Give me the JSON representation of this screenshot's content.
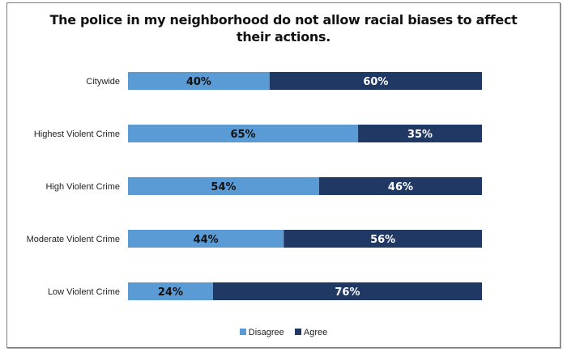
{
  "chart_data": {
    "type": "bar",
    "orientation": "horizontal",
    "stacked": true,
    "percent_stacked": true,
    "title_lines": [
      "The police in my neighborhood do not allow racial biases to affect",
      "their actions."
    ],
    "title": "The police in my neighborhood do not allow racial biases to affect their actions.",
    "categories": [
      "Citywide",
      "Highest Violent Crime",
      "High Violent Crime",
      "Moderate Violent Crime",
      "Low Violent Crime"
    ],
    "series": [
      {
        "name": "Disagree",
        "color": "#5b9bd5",
        "label_color": "#111111",
        "values": [
          40,
          65,
          54,
          44,
          24
        ]
      },
      {
        "name": "Agree",
        "color": "#1f3864",
        "label_color": "#ffffff",
        "values": [
          60,
          35,
          46,
          56,
          76
        ]
      }
    ],
    "xlim": [
      0,
      100
    ],
    "value_suffix": "%",
    "grid": false,
    "legend_position": "bottom",
    "xlabel": "",
    "ylabel": ""
  }
}
